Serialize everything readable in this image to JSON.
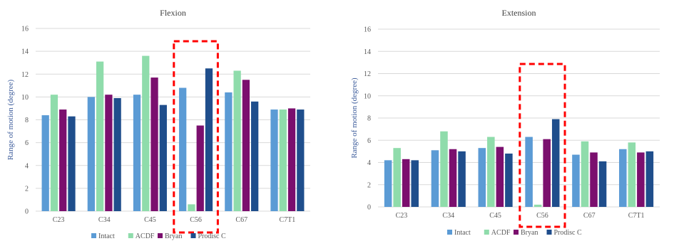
{
  "colors": {
    "Intact": "#5b9bd5",
    "ACDF": "#8fdcab",
    "Bryan": "#7b0f6e",
    "Prodisc C": "#1f4e8c",
    "highlight": "#ff0000",
    "grid": "#d9d9d9",
    "axis_text": "#595959",
    "ylabel_text": "#3a5a9a"
  },
  "chart_data": [
    {
      "type": "bar",
      "title": "Flexion",
      "xlabel": "",
      "ylabel": "Range of motion (degree)",
      "categories": [
        "C23",
        "C34",
        "C45",
        "C56",
        "C67",
        "C7T1"
      ],
      "ylim": [
        0,
        16
      ],
      "yticks": [
        0,
        2,
        4,
        6,
        8,
        10,
        12,
        14,
        16
      ],
      "grid": true,
      "legend": "bottom",
      "highlight_category": "C56",
      "series": [
        {
          "name": "Intact",
          "values": [
            8.4,
            10.0,
            10.2,
            10.8,
            10.4,
            8.9
          ]
        },
        {
          "name": "ACDF",
          "values": [
            10.2,
            13.1,
            13.6,
            0.6,
            12.3,
            8.9
          ]
        },
        {
          "name": "Bryan",
          "values": [
            8.9,
            10.2,
            11.7,
            7.5,
            11.5,
            9.0
          ]
        },
        {
          "name": "Prodisc C",
          "values": [
            8.3,
            9.9,
            9.3,
            12.5,
            9.6,
            8.9
          ]
        }
      ]
    },
    {
      "type": "bar",
      "title": "Extension",
      "xlabel": "",
      "ylabel": "Range of motion (degree)",
      "categories": [
        "C23",
        "C34",
        "C45",
        "C56",
        "C67",
        "C7T1"
      ],
      "ylim": [
        0,
        16
      ],
      "yticks": [
        0,
        2,
        4,
        6,
        8,
        10,
        12,
        14,
        16
      ],
      "grid": true,
      "legend": "bottom",
      "highlight_category": "C56",
      "series": [
        {
          "name": "Intact",
          "values": [
            4.2,
            5.1,
            5.3,
            6.3,
            4.7,
            5.2
          ]
        },
        {
          "name": "ACDF",
          "values": [
            5.3,
            6.8,
            6.3,
            0.2,
            5.9,
            5.8
          ]
        },
        {
          "name": "Bryan",
          "values": [
            4.3,
            5.2,
            5.4,
            6.1,
            4.9,
            4.9
          ]
        },
        {
          "name": "Prodisc C",
          "values": [
            4.2,
            5.0,
            4.8,
            7.9,
            4.1,
            5.0
          ]
        }
      ]
    }
  ]
}
